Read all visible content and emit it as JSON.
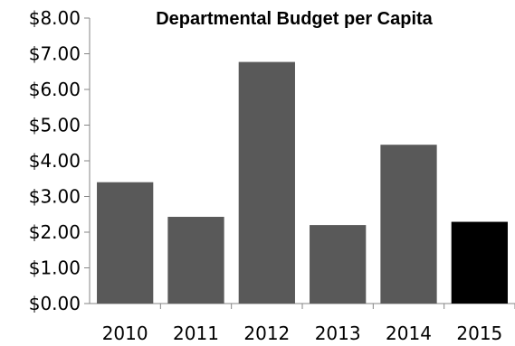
{
  "chart_data": {
    "type": "bar",
    "title": "Departmental Budget per Capita",
    "xlabel": "",
    "ylabel": "",
    "categories": [
      "2010",
      "2011",
      "2012",
      "2013",
      "2014",
      "2015"
    ],
    "values": [
      3.4,
      2.43,
      6.77,
      2.2,
      4.45,
      2.29
    ],
    "ylim": [
      0,
      8
    ],
    "yticks": [
      0,
      1,
      2,
      3,
      4,
      5,
      6,
      7,
      8
    ],
    "ytick_labels": [
      "$0.00",
      "$1.00",
      "$2.00",
      "$3.00",
      "$4.00",
      "$5.00",
      "$6.00",
      "$7.00",
      "$8.00"
    ],
    "grid": false,
    "legend": "none",
    "bar_color": "#595959",
    "highlight_color": "#000000",
    "highlight_category": "2015"
  }
}
